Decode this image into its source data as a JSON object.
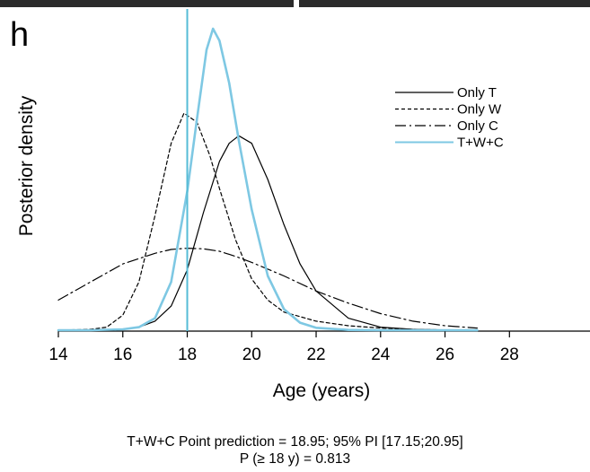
{
  "panel_label": "h",
  "caption": {
    "line1": "T+W+C  Point prediction = 18.95; 95% PI [17.15;20.95]",
    "line2": "P (≥ 18 y) = 0.813"
  },
  "colors": {
    "only_t": "#000000",
    "only_w": "#000000",
    "only_c": "#000000",
    "twc": "#7ec8e3",
    "threshold": "#56bcd6",
    "axis": "#000000"
  },
  "chart_data": {
    "type": "line",
    "title": "",
    "xlabel": "Age (years)",
    "ylabel": "Posterior density",
    "xlim": [
      14,
      30.5
    ],
    "ylim": [
      0,
      1
    ],
    "xticks": [
      14,
      16,
      18,
      20,
      22,
      24,
      26,
      28
    ],
    "yticks": [],
    "grid": false,
    "legend_position": "top-right",
    "threshold_line": {
      "x": 18
    },
    "series": [
      {
        "name": "Only T",
        "style": "solid",
        "color": "#000000",
        "x": [
          14,
          15,
          16,
          16.5,
          17,
          17.5,
          18,
          18.5,
          19,
          19.3,
          19.6,
          20,
          20.5,
          21,
          21.5,
          22,
          23,
          24,
          25,
          26,
          27
        ],
        "y": [
          0,
          0,
          0.003,
          0.01,
          0.03,
          0.08,
          0.2,
          0.39,
          0.56,
          0.62,
          0.645,
          0.62,
          0.5,
          0.35,
          0.22,
          0.13,
          0.04,
          0.01,
          0.003,
          0.001,
          0
        ]
      },
      {
        "name": "Only W",
        "style": "dotted",
        "color": "#000000",
        "x": [
          14,
          15,
          15.5,
          16,
          16.5,
          17,
          17.5,
          17.9,
          18.3,
          18.7,
          19,
          19.5,
          20,
          20.5,
          21,
          22,
          23,
          24,
          25,
          26,
          27
        ],
        "y": [
          0,
          0.003,
          0.01,
          0.05,
          0.16,
          0.38,
          0.62,
          0.72,
          0.69,
          0.58,
          0.47,
          0.3,
          0.17,
          0.1,
          0.06,
          0.03,
          0.015,
          0.007,
          0.003,
          0.001,
          0
        ]
      },
      {
        "name": "Only C",
        "style": "dashdot",
        "color": "#000000",
        "x": [
          14,
          15,
          16,
          17,
          17.5,
          18,
          18.5,
          19,
          19.5,
          20,
          21,
          22,
          23,
          24,
          25,
          26,
          27
        ],
        "y": [
          0.1,
          0.16,
          0.22,
          0.255,
          0.268,
          0.272,
          0.27,
          0.262,
          0.245,
          0.225,
          0.18,
          0.13,
          0.09,
          0.055,
          0.03,
          0.015,
          0.007
        ]
      },
      {
        "name": "T+W+C",
        "style": "solid",
        "color": "#7ec8e3",
        "x": [
          14,
          15,
          16,
          16.5,
          17,
          17.5,
          18,
          18.3,
          18.6,
          18.8,
          19,
          19.3,
          19.6,
          20,
          20.5,
          21,
          21.5,
          22,
          23,
          24,
          25,
          26,
          27
        ],
        "y": [
          0,
          0,
          0.003,
          0.01,
          0.04,
          0.16,
          0.46,
          0.7,
          0.93,
          1.0,
          0.96,
          0.82,
          0.63,
          0.4,
          0.18,
          0.07,
          0.025,
          0.008,
          0.001,
          0,
          0,
          0,
          0
        ]
      }
    ]
  }
}
